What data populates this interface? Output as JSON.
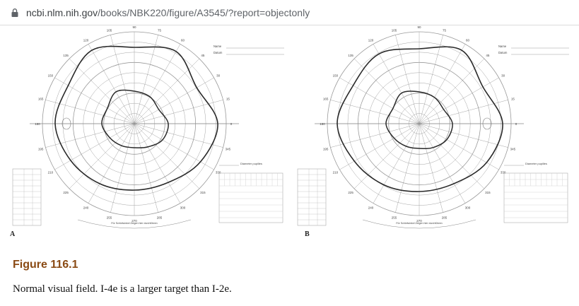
{
  "browser": {
    "url_host": "ncbi.nlm.nih.gov",
    "url_path": "/books/NBK220/figure/A3545/?report=objectonly"
  },
  "figure": {
    "panels": [
      {
        "label": "A",
        "form_fields": [
          "Name",
          "Datum"
        ],
        "pupil_label": "Diameter pupilles",
        "bottom_label": "Für Schielwinkel Zeigen hier durchführen"
      },
      {
        "label": "B",
        "form_fields": [
          "Name",
          "Datum"
        ],
        "pupil_label": "Diameter pupilles",
        "bottom_label": "Für Schielwinkel Zeigen hier durchführen"
      }
    ],
    "meridian_labels": [
      "90",
      "105",
      "120",
      "135",
      "150",
      "165",
      "180",
      "195",
      "210",
      "225",
      "240",
      "255",
      "270",
      "285",
      "300",
      "315",
      "330",
      "345",
      "0",
      "15",
      "30",
      "45",
      "60",
      "75"
    ],
    "title": "Figure 116.1",
    "caption": "Normal visual field. I-4e is a larger target than I-2e."
  },
  "colors": {
    "title": "#8a4a14",
    "text": "#111111",
    "lines": "#9a9a9a",
    "isopters": "#2a2a2a"
  }
}
